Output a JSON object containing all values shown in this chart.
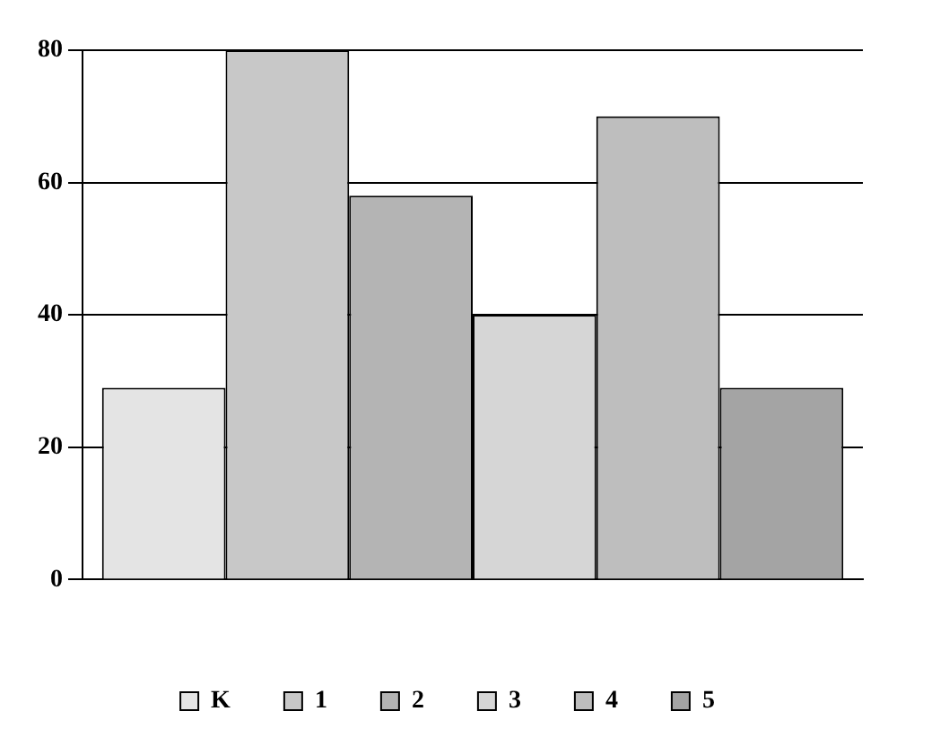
{
  "chart_data": {
    "type": "bar",
    "categories": [
      null
    ],
    "series": [
      {
        "name": "K",
        "color": "#e4e4e4",
        "values": [
          29
        ]
      },
      {
        "name": "1",
        "color": "#c8c8c8",
        "values": [
          80
        ]
      },
      {
        "name": "2",
        "color": "#b4b4b4",
        "values": [
          58
        ]
      },
      {
        "name": "3",
        "color": "#d6d6d6",
        "values": [
          40
        ]
      },
      {
        "name": "4",
        "color": "#bebebe",
        "values": [
          70
        ]
      },
      {
        "name": "5",
        "color": "#a4a4a4",
        "values": [
          29
        ]
      }
    ],
    "ylim": [
      0,
      80
    ],
    "yticks": [
      0,
      20,
      40,
      60,
      80
    ],
    "grid": "y",
    "legend": "bottom"
  }
}
